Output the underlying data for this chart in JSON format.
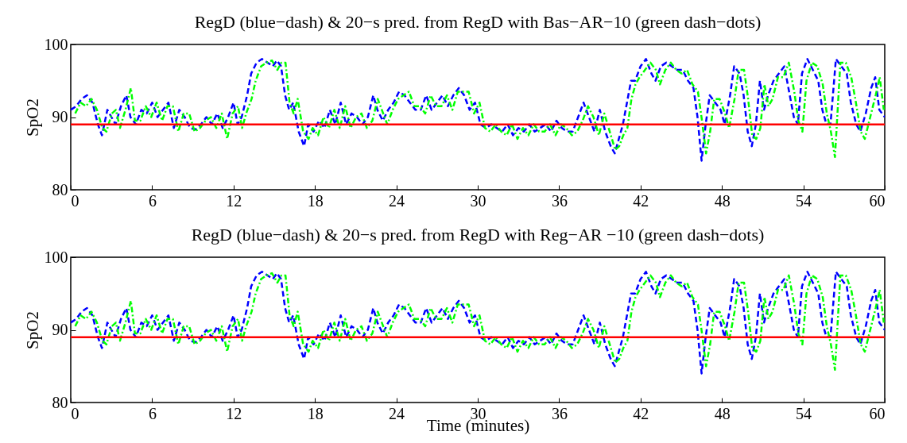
{
  "chart_data": [
    {
      "type": "line",
      "title": "RegD (blue−dash) & 20−s pred. from RegD with Bas−AR−10 (green dash−dots)",
      "ylabel": "SpO2",
      "xlim": [
        0,
        60
      ],
      "xticks": [
        0,
        6,
        12,
        18,
        24,
        30,
        36,
        42,
        48,
        54,
        60
      ],
      "ylim": [
        80,
        100
      ],
      "yticks": [
        80,
        90,
        100
      ],
      "grid": false,
      "x": [
        0,
        0.4,
        0.8,
        1.2,
        1.6,
        2.0,
        2.3,
        2.7,
        3.0,
        3.3,
        3.7,
        4.1,
        4.4,
        4.8,
        5.2,
        5.6,
        6.0,
        6.4,
        6.8,
        7.2,
        7.6,
        8.0,
        8.4,
        8.8,
        9.2,
        9.6,
        10.0,
        10.4,
        10.8,
        11.2,
        11.6,
        12.0,
        12.3,
        12.6,
        13.0,
        13.3,
        13.7,
        14.1,
        14.5,
        14.9,
        15.2,
        15.5,
        15.8,
        16.1,
        16.4,
        16.8,
        17.2,
        17.5,
        17.9,
        18.3,
        18.7,
        19.1,
        19.5,
        19.9,
        20.3,
        20.7,
        21.1,
        21.5,
        21.9,
        22.3,
        22.6,
        23.0,
        23.4,
        23.8,
        24.2,
        24.6,
        25.0,
        25.4,
        25.8,
        26.2,
        26.6,
        27.0,
        27.4,
        27.8,
        28.2,
        28.6,
        29.0,
        29.4,
        29.8,
        30.2,
        30.6,
        31.0,
        31.4,
        31.8,
        32.2,
        32.6,
        33.0,
        33.4,
        33.8,
        34.2,
        34.6,
        35.0,
        35.4,
        35.8,
        36.2,
        36.6,
        37.0,
        37.4,
        37.8,
        38.2,
        38.6,
        39.0,
        39.4,
        39.8,
        40.1,
        40.4,
        40.7,
        41.0,
        41.3,
        41.6,
        42.0,
        42.4,
        42.8,
        43.1,
        43.5,
        43.9,
        44.3,
        44.7,
        45.1,
        45.5,
        45.9,
        46.2,
        46.5,
        46.8,
        47.1,
        47.5,
        47.9,
        48.2,
        48.6,
        48.9,
        49.3,
        49.6,
        49.9,
        50.2,
        50.5,
        50.8,
        51.1,
        51.4,
        51.8,
        52.2,
        52.6,
        53.0,
        53.3,
        53.6,
        53.9,
        54.3,
        54.7,
        55.1,
        55.4,
        55.7,
        56.0,
        56.4,
        56.8,
        57.2,
        57.5,
        57.9,
        58.2,
        58.6,
        59.0,
        59.3,
        59.6,
        60
      ],
      "series": [
        {
          "color": "#0000ff",
          "line_style": "dashed",
          "values": [
            91,
            91.5,
            92.5,
            93,
            92,
            89,
            87.5,
            91,
            90,
            89,
            91.5,
            93,
            90,
            89,
            91,
            90.5,
            92,
            90,
            91,
            92,
            88.5,
            91,
            90,
            88.5,
            88.3,
            89,
            90,
            89,
            90.5,
            88.5,
            90,
            92,
            89,
            90,
            93,
            96,
            97.5,
            98,
            97.5,
            97,
            97.8,
            97,
            93,
            91,
            92,
            88,
            86,
            89,
            88,
            89.5,
            88.5,
            91,
            89,
            92,
            89,
            90.5,
            90,
            89,
            90,
            93,
            91,
            89.5,
            91,
            92,
            93.5,
            93,
            92,
            91,
            91,
            93,
            91,
            92,
            93,
            91.5,
            93,
            94,
            93,
            91,
            92,
            89,
            88.5,
            89,
            88.5,
            88,
            89,
            87.5,
            88.5,
            88,
            89,
            88,
            88.5,
            89,
            88,
            89.5,
            88.5,
            88,
            88,
            90,
            92,
            90,
            88,
            91,
            88,
            86,
            85,
            87,
            89,
            92,
            95,
            95,
            97,
            98,
            96,
            95,
            97,
            97.5,
            97,
            96.5,
            96.5,
            95,
            94,
            90,
            84,
            89,
            93,
            92,
            91,
            89,
            93,
            97,
            96,
            93,
            88,
            86,
            89,
            95,
            91,
            93,
            95,
            96,
            97,
            93,
            90,
            89,
            96,
            98,
            96.5,
            95,
            91,
            89,
            89,
            98,
            97,
            96,
            92,
            89,
            88,
            90.5,
            94,
            95.5,
            91,
            90
          ]
        },
        {
          "color": "#00ff00",
          "line_style": "dotted",
          "x": [
            0.33,
            0.73,
            1.13,
            1.53,
            1.93,
            2.33,
            2.63,
            3.03,
            3.33,
            3.63,
            4.03,
            4.43,
            4.73,
            5.13,
            5.53,
            5.93,
            6.33,
            6.73,
            7.13,
            7.53,
            7.93,
            8.33,
            8.73,
            9.13,
            9.53,
            9.93,
            10.33,
            10.73,
            11.13,
            11.53,
            11.93,
            12.33,
            12.63,
            12.93,
            13.33,
            13.63,
            14.03,
            14.43,
            14.83,
            15.23,
            15.53,
            15.83,
            16.13,
            16.43,
            16.73,
            17.13,
            17.53,
            17.83,
            18.23,
            18.63,
            19.03,
            19.43,
            19.83,
            20.23,
            20.63,
            21.03,
            21.43,
            21.83,
            22.23,
            22.63,
            22.93,
            23.33,
            23.73,
            24.13,
            24.53,
            24.93,
            25.33,
            25.73,
            26.13,
            26.53,
            26.93,
            27.33,
            27.73,
            28.13,
            28.53,
            28.93,
            29.33,
            29.73,
            30.13,
            30.53,
            30.93,
            31.33,
            31.73,
            32.13,
            32.53,
            32.93,
            33.33,
            33.73,
            34.13,
            34.53,
            34.93,
            35.33,
            35.73,
            36.13,
            36.53,
            36.93,
            37.33,
            37.73,
            38.13,
            38.53,
            38.93,
            39.33,
            39.73,
            40.13,
            40.43,
            40.73,
            41.03,
            41.33,
            41.63,
            41.93,
            42.33,
            42.73,
            43.13,
            43.43,
            43.83,
            44.23,
            44.63,
            45.03,
            45.43,
            45.83,
            46.23,
            46.53,
            46.83,
            47.13,
            47.43,
            47.83,
            48.23,
            48.53,
            48.93,
            49.23,
            49.63,
            49.93,
            50.23,
            50.53,
            50.83,
            51.13,
            51.43,
            51.73,
            52.13,
            52.53,
            52.93,
            53.33,
            53.63,
            53.93,
            54.23,
            54.63,
            55.03,
            55.43,
            55.73,
            56.03,
            56.33,
            56.73,
            57.13,
            57.53,
            57.83,
            58.23,
            58.53,
            58.93,
            59.33,
            59.63,
            59.93
          ],
          "values": [
            90.5,
            92,
            91.5,
            92.5,
            91,
            88.5,
            88,
            90.5,
            91,
            88.5,
            91,
            94,
            89.5,
            89.5,
            91.5,
            90,
            92,
            89.5,
            91.5,
            91.5,
            88,
            90.5,
            90.5,
            88,
            88.5,
            89.5,
            90,
            88.5,
            90.5,
            87,
            90.5,
            91.5,
            88.5,
            90.5,
            92.5,
            95,
            97,
            97.5,
            97.8,
            96.5,
            97.5,
            97.5,
            92,
            90.5,
            92.5,
            88,
            87,
            88.5,
            87.5,
            90,
            88.5,
            91,
            88.5,
            91.5,
            88.5,
            90,
            90.5,
            88.5,
            89.5,
            92.5,
            91,
            89,
            91,
            92.5,
            93,
            93.5,
            91.5,
            91.5,
            90.5,
            93,
            91.5,
            91.5,
            93,
            91,
            93.5,
            93.5,
            93.5,
            90.5,
            92,
            88.5,
            88,
            89,
            88,
            87.5,
            89,
            87,
            88.5,
            87.5,
            89,
            88,
            88,
            89,
            87.5,
            89,
            88.5,
            87.5,
            88,
            89.5,
            91.5,
            90,
            87.5,
            90.5,
            88,
            85.5,
            86,
            87.5,
            88.5,
            92.5,
            94.5,
            95.5,
            96.5,
            97.5,
            96.5,
            94.5,
            96.5,
            97.5,
            96.5,
            96,
            96.5,
            94.5,
            93.5,
            89.5,
            85,
            88,
            92.5,
            92.5,
            90.5,
            88.5,
            92.5,
            96.5,
            96.5,
            92.5,
            87.5,
            87,
            88.5,
            94.5,
            91.5,
            92.5,
            95.5,
            95.5,
            97.5,
            93.5,
            89.5,
            88,
            95,
            97.5,
            97,
            94.5,
            90.5,
            88,
            84.5,
            97.5,
            97.5,
            95.5,
            92.5,
            88,
            87,
            90,
            93,
            95.5,
            91
          ]
        }
      ],
      "ref_lines": [
        {
          "axis": "y",
          "value": 89,
          "color": "#ff0000"
        }
      ]
    },
    {
      "type": "line",
      "title": "RegD (blue−dash) & 20−s pred. from RegD with Reg−AR −10 (green dash−dots)",
      "xlabel": "Time (minutes)",
      "ylabel": "SpO2",
      "xlim": [
        0,
        60
      ],
      "xticks": [
        0,
        6,
        12,
        18,
        24,
        30,
        36,
        42,
        48,
        54,
        60
      ],
      "ylim": [
        80,
        100
      ],
      "yticks": [
        80,
        90,
        100
      ],
      "grid": false,
      "x": [
        0,
        0.4,
        0.8,
        1.2,
        1.6,
        2.0,
        2.3,
        2.7,
        3.0,
        3.3,
        3.7,
        4.1,
        4.4,
        4.8,
        5.2,
        5.6,
        6.0,
        6.4,
        6.8,
        7.2,
        7.6,
        8.0,
        8.4,
        8.8,
        9.2,
        9.6,
        10.0,
        10.4,
        10.8,
        11.2,
        11.6,
        12.0,
        12.3,
        12.6,
        13.0,
        13.3,
        13.7,
        14.1,
        14.5,
        14.9,
        15.2,
        15.5,
        15.8,
        16.1,
        16.4,
        16.8,
        17.2,
        17.5,
        17.9,
        18.3,
        18.7,
        19.1,
        19.5,
        19.9,
        20.3,
        20.7,
        21.1,
        21.5,
        21.9,
        22.3,
        22.6,
        23.0,
        23.4,
        23.8,
        24.2,
        24.6,
        25.0,
        25.4,
        25.8,
        26.2,
        26.6,
        27.0,
        27.4,
        27.8,
        28.2,
        28.6,
        29.0,
        29.4,
        29.8,
        30.2,
        30.6,
        31.0,
        31.4,
        31.8,
        32.2,
        32.6,
        33.0,
        33.4,
        33.8,
        34.2,
        34.6,
        35.0,
        35.4,
        35.8,
        36.2,
        36.6,
        37.0,
        37.4,
        37.8,
        38.2,
        38.6,
        39.0,
        39.4,
        39.8,
        40.1,
        40.4,
        40.7,
        41.0,
        41.3,
        41.6,
        42.0,
        42.4,
        42.8,
        43.1,
        43.5,
        43.9,
        44.3,
        44.7,
        45.1,
        45.5,
        45.9,
        46.2,
        46.5,
        46.8,
        47.1,
        47.5,
        47.9,
        48.2,
        48.6,
        48.9,
        49.3,
        49.6,
        49.9,
        50.2,
        50.5,
        50.8,
        51.1,
        51.4,
        51.8,
        52.2,
        52.6,
        53.0,
        53.3,
        53.6,
        53.9,
        54.3,
        54.7,
        55.1,
        55.4,
        55.7,
        56.0,
        56.4,
        56.8,
        57.2,
        57.5,
        57.9,
        58.2,
        58.6,
        59.0,
        59.3,
        59.6,
        60
      ],
      "series": [
        {
          "color": "#0000ff",
          "line_style": "dashed",
          "values": [
            91,
            91.5,
            92.5,
            93,
            92,
            89,
            87.5,
            91,
            90,
            89,
            91.5,
            93,
            90,
            89,
            91,
            90.5,
            92,
            90,
            91,
            92,
            88.5,
            91,
            90,
            88.5,
            88.3,
            89,
            90,
            89,
            90.5,
            88.5,
            90,
            92,
            89,
            90,
            93,
            96,
            97.5,
            98,
            97.5,
            97,
            97.8,
            97,
            93,
            91,
            92,
            88,
            86,
            89,
            88,
            89.5,
            88.5,
            91,
            89,
            92,
            89,
            90.5,
            90,
            89,
            90,
            93,
            91,
            89.5,
            91,
            92,
            93.5,
            93,
            92,
            91,
            91,
            93,
            91,
            92,
            93,
            91.5,
            93,
            94,
            93,
            91,
            92,
            89,
            88.5,
            89,
            88.5,
            88,
            89,
            87.5,
            88.5,
            88,
            89,
            88,
            88.5,
            89,
            88,
            89.5,
            88.5,
            88,
            88,
            90,
            92,
            90,
            88,
            91,
            88,
            86,
            85,
            87,
            89,
            92,
            95,
            95,
            97,
            98,
            96,
            95,
            97,
            97.5,
            97,
            96.5,
            96.5,
            95,
            94,
            90,
            84,
            89,
            93,
            92,
            91,
            89,
            93,
            97,
            96,
            93,
            88,
            86,
            89,
            95,
            91,
            93,
            95,
            96,
            97,
            93,
            90,
            89,
            96,
            98,
            96.5,
            95,
            91,
            89,
            89,
            98,
            97,
            96,
            92,
            89,
            88,
            90.5,
            94,
            95.5,
            91,
            90
          ]
        },
        {
          "color": "#00ff00",
          "line_style": "dotted",
          "x": [
            0.33,
            0.73,
            1.13,
            1.53,
            1.93,
            2.33,
            2.63,
            3.03,
            3.33,
            3.63,
            4.03,
            4.43,
            4.73,
            5.13,
            5.53,
            5.93,
            6.33,
            6.73,
            7.13,
            7.53,
            7.93,
            8.33,
            8.73,
            9.13,
            9.53,
            9.93,
            10.33,
            10.73,
            11.13,
            11.53,
            11.93,
            12.33,
            12.63,
            12.93,
            13.33,
            13.63,
            14.03,
            14.43,
            14.83,
            15.23,
            15.53,
            15.83,
            16.13,
            16.43,
            16.73,
            17.13,
            17.53,
            17.83,
            18.23,
            18.63,
            19.03,
            19.43,
            19.83,
            20.23,
            20.63,
            21.03,
            21.43,
            21.83,
            22.23,
            22.63,
            22.93,
            23.33,
            23.73,
            24.13,
            24.53,
            24.93,
            25.33,
            25.73,
            26.13,
            26.53,
            26.93,
            27.33,
            27.73,
            28.13,
            28.53,
            28.93,
            29.33,
            29.73,
            30.13,
            30.53,
            30.93,
            31.33,
            31.73,
            32.13,
            32.53,
            32.93,
            33.33,
            33.73,
            34.13,
            34.53,
            34.93,
            35.33,
            35.73,
            36.13,
            36.53,
            36.93,
            37.33,
            37.73,
            38.13,
            38.53,
            38.93,
            39.33,
            39.73,
            40.13,
            40.43,
            40.73,
            41.03,
            41.33,
            41.63,
            41.93,
            42.33,
            42.73,
            43.13,
            43.43,
            43.83,
            44.23,
            44.63,
            45.03,
            45.43,
            45.83,
            46.23,
            46.53,
            46.83,
            47.13,
            47.43,
            47.83,
            48.23,
            48.53,
            48.93,
            49.23,
            49.63,
            49.93,
            50.23,
            50.53,
            50.83,
            51.13,
            51.43,
            51.73,
            52.13,
            52.53,
            52.93,
            53.33,
            53.63,
            53.93,
            54.23,
            54.63,
            55.03,
            55.43,
            55.73,
            56.03,
            56.33,
            56.73,
            57.13,
            57.53,
            57.83,
            58.23,
            58.53,
            58.93,
            59.33,
            59.63,
            59.93
          ],
          "values": [
            90.5,
            92,
            91.5,
            92.5,
            91,
            88.5,
            88,
            90.5,
            91,
            88.5,
            91,
            94,
            89.5,
            89.5,
            91.5,
            90,
            92,
            89.5,
            91.5,
            91.5,
            88,
            90.5,
            90.5,
            88,
            88.5,
            89.5,
            90,
            88.5,
            90.5,
            87,
            90.5,
            91.5,
            88.5,
            90.5,
            92.5,
            95,
            97,
            97.5,
            97.8,
            96.5,
            97.5,
            97.5,
            92,
            90.5,
            92.5,
            88,
            87,
            88.5,
            87.5,
            90,
            88.5,
            91,
            88.5,
            91.5,
            88.5,
            90,
            90.5,
            88.5,
            89.5,
            92.5,
            91,
            89,
            91,
            92.5,
            93,
            93.5,
            91.5,
            91.5,
            90.5,
            93,
            91.5,
            91.5,
            93,
            91,
            93.5,
            93.5,
            93.5,
            90.5,
            92,
            88.5,
            88,
            89,
            88,
            87.5,
            89,
            87,
            88.5,
            87.5,
            89,
            88,
            88,
            89,
            87.5,
            89,
            88.5,
            87.5,
            88,
            89.5,
            91.5,
            90,
            87.5,
            90.5,
            88,
            85.5,
            86,
            87.5,
            88.5,
            92.5,
            94.5,
            95.5,
            96.5,
            97.5,
            96.5,
            94.5,
            96.5,
            97.5,
            96.5,
            96,
            96.5,
            94.5,
            93.5,
            89.5,
            85,
            88,
            92.5,
            92.5,
            90.5,
            88.5,
            92.5,
            96.5,
            96.5,
            92.5,
            87.5,
            87,
            88.5,
            94.5,
            91.5,
            92.5,
            95.5,
            95.5,
            97.5,
            93.5,
            89.5,
            88,
            95,
            97.5,
            97,
            94.5,
            90.5,
            88,
            84.5,
            97.5,
            97.5,
            95.5,
            92.5,
            88,
            87,
            90,
            93,
            95.5,
            91
          ]
        }
      ],
      "ref_lines": [
        {
          "axis": "y",
          "value": 89,
          "color": "#ff0000"
        }
      ]
    }
  ]
}
